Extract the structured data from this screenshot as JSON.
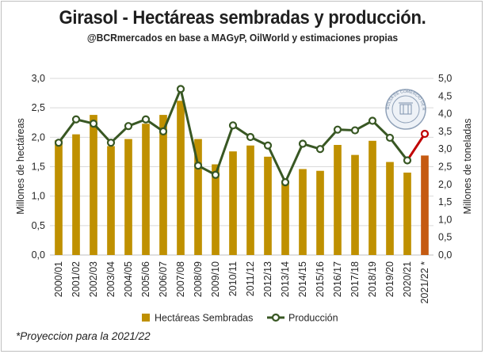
{
  "chart_data": {
    "type": "bar",
    "title": "Girasol - Hectáreas sembradas y producción.",
    "subtitle": "@BCRmercados en base a MAGyP, OilWorld y estimaciones propias",
    "footnote": "*Proyeccion para la 2021/22",
    "categories": [
      "2000/01",
      "2001/02",
      "2002/03",
      "2003/04",
      "2004/05",
      "2005/06",
      "2006/07",
      "2007/08",
      "2008/09",
      "2009/10",
      "2010/11",
      "2011/12",
      "2012/13",
      "2013/14",
      "2014/15",
      "2015/16",
      "2016/17",
      "2017/18",
      "2018/19",
      "2019/20",
      "2020/21",
      "2021/22 *"
    ],
    "series": [
      {
        "name": "Hectáreas Sembradas",
        "type": "bar",
        "axis": "left",
        "color": "#bf9000",
        "projection_color": "#c55a11",
        "values": [
          1.95,
          2.05,
          2.38,
          1.85,
          1.97,
          2.23,
          2.38,
          2.62,
          1.97,
          1.54,
          1.76,
          1.86,
          1.67,
          1.26,
          1.46,
          1.43,
          1.87,
          1.7,
          1.94,
          1.58,
          1.4,
          1.69
        ]
      },
      {
        "name": "Producción",
        "type": "line",
        "axis": "right",
        "color": "#385723",
        "projection_color": "#c00000",
        "values": [
          3.18,
          3.84,
          3.72,
          3.18,
          3.65,
          3.84,
          3.5,
          4.7,
          2.53,
          2.27,
          3.67,
          3.34,
          3.1,
          2.06,
          3.15,
          3.0,
          3.55,
          3.53,
          3.8,
          3.32,
          2.68,
          3.43
        ]
      }
    ],
    "ylabel_left": "Millones de hectáreas",
    "ylabel_right": "Millones de toneladas",
    "ylim_left": [
      0,
      3.0
    ],
    "ylim_right": [
      0,
      5.0
    ],
    "yticks_left": [
      "0,0",
      "0,5",
      "1,0",
      "1,5",
      "2,0",
      "2,5",
      "3,0"
    ],
    "yticks_right": [
      "0,0",
      "0,5",
      "1,0",
      "1,5",
      "2,0",
      "2,5",
      "3,0",
      "3,5",
      "4,0",
      "4,5",
      "5,0"
    ],
    "grid": true,
    "legend_position": "bottom",
    "watermark": "BOLSA DE COMERCIO DE ROSARIO"
  }
}
